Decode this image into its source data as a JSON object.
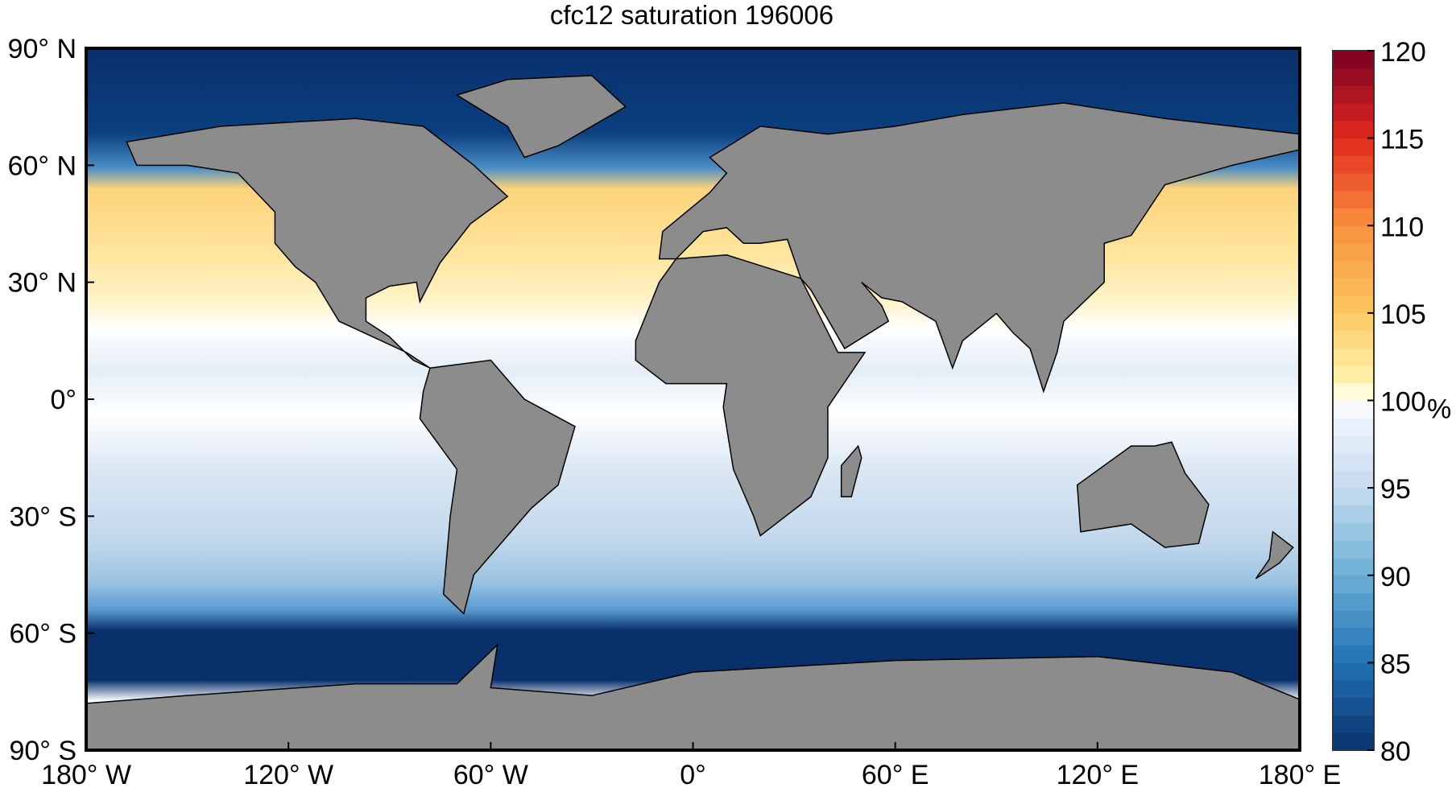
{
  "title": "cfc12 saturation 196006",
  "map": {
    "projection": "equirectangular",
    "lon_range": [
      -180,
      180
    ],
    "lat_range": [
      -90,
      90
    ],
    "land_color": "#8c8c8c",
    "coastline_color": "#000000",
    "x_ticks": [
      {
        "value": -180,
        "label": "180° W"
      },
      {
        "value": -120,
        "label": "120° W"
      },
      {
        "value": -60,
        "label": "60° W"
      },
      {
        "value": 0,
        "label": "0°"
      },
      {
        "value": 60,
        "label": "60° E"
      },
      {
        "value": 120,
        "label": "120° E"
      },
      {
        "value": 180,
        "label": "180° E"
      }
    ],
    "y_ticks": [
      {
        "value": 90,
        "label": "90° N"
      },
      {
        "value": 60,
        "label": "60° N"
      },
      {
        "value": 30,
        "label": "30° N"
      },
      {
        "value": 0,
        "label": "0°"
      },
      {
        "value": -30,
        "label": "30° S"
      },
      {
        "value": -60,
        "label": "60° S"
      },
      {
        "value": -90,
        "label": "90° S"
      }
    ]
  },
  "colorbar": {
    "range": [
      80,
      120
    ],
    "step": 1,
    "unit": "%",
    "ticks": [
      "80",
      "85",
      "90",
      "95",
      "100",
      "105",
      "110",
      "115",
      "120"
    ],
    "colormap_stops": [
      {
        "value": 80,
        "color": "#08306b"
      },
      {
        "value": 85,
        "color": "#2171b5"
      },
      {
        "value": 90,
        "color": "#6baed6"
      },
      {
        "value": 95,
        "color": "#c6dbef"
      },
      {
        "value": 99,
        "color": "#eef4fb"
      },
      {
        "value": 100,
        "color": "#ffffff"
      },
      {
        "value": 101,
        "color": "#fff5b0"
      },
      {
        "value": 105,
        "color": "#fdc862"
      },
      {
        "value": 110,
        "color": "#f7903d"
      },
      {
        "value": 115,
        "color": "#e3291f"
      },
      {
        "value": 120,
        "color": "#7a0022"
      }
    ]
  }
}
